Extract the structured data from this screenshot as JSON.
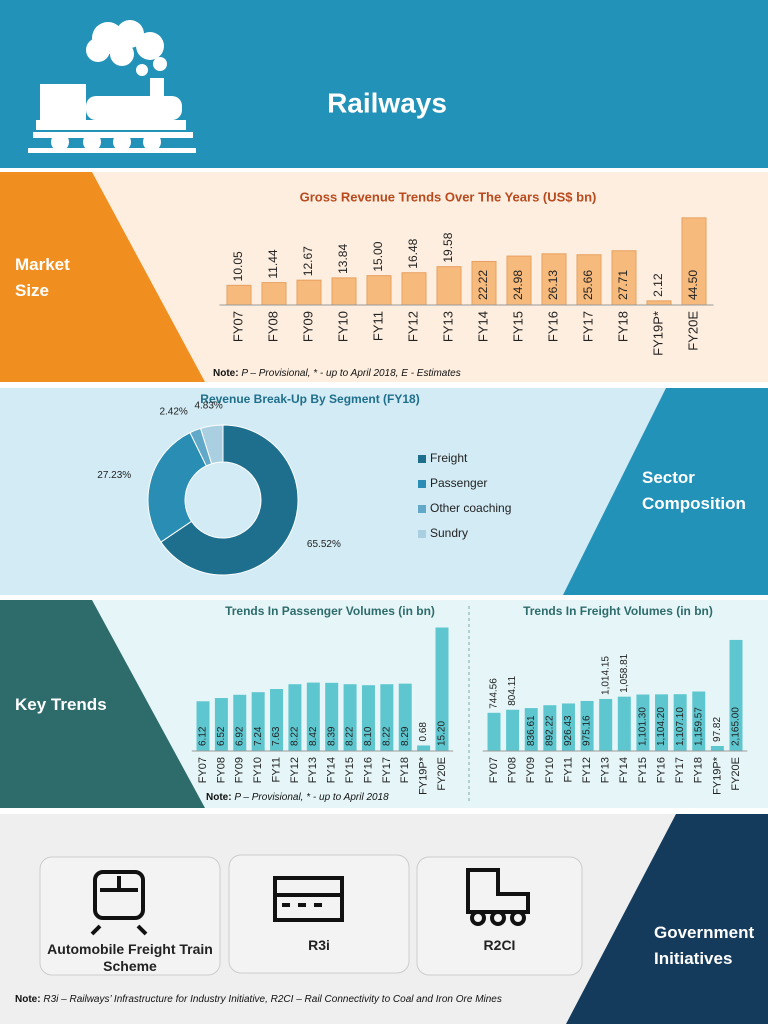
{
  "header": {
    "title": "Railways"
  },
  "market_size": {
    "label": "Market Size",
    "note": {
      "label": "Note:",
      "text": "P – Provisional, * - up to April 2018, E - Estimates"
    }
  },
  "sector_composition": {
    "label": "Sector Composition"
  },
  "key_trends": {
    "label": "Key Trends",
    "note": {
      "label": "Note:",
      "text": "P – Provisional, * - up to April 2018"
    }
  },
  "government_initiatives": {
    "label": "Government Initiatives",
    "cards": [
      "Automobile Freight Train Scheme",
      "R3i",
      "R2CI"
    ],
    "note": {
      "label": "Note:",
      "text": "R3i – Railways’ Infrastructure for Industry Initiative, R2CI – Rail Connectivity to Coal and Iron Ore Mines"
    }
  },
  "chart_data": [
    {
      "type": "bar",
      "title": "Gross Revenue Trends Over The Years (US$ bn)",
      "categories": [
        "FY07",
        "FY08",
        "FY09",
        "FY10",
        "FY11",
        "FY12",
        "FY13",
        "FY14",
        "FY15",
        "FY16",
        "FY17",
        "FY18",
        "FY19P*",
        "FY20E"
      ],
      "values": [
        10.05,
        11.44,
        12.67,
        13.84,
        15.0,
        16.48,
        19.58,
        22.22,
        24.98,
        26.13,
        25.66,
        27.71,
        2.12,
        44.5
      ],
      "value_labels": [
        "10.05",
        "11.44",
        "12.67",
        "13.84",
        "15.00",
        "16.48",
        "19.58",
        "22.22",
        "24.98",
        "26.13",
        "25.66",
        "27.71",
        "2.12",
        "44.50"
      ],
      "color": "#f6ba7c",
      "ylim": [
        0,
        48
      ]
    },
    {
      "type": "pie",
      "title": "Revenue Break-Up By Segment (FY18)",
      "categories": [
        "Freight",
        "Passenger",
        "Other coaching",
        "Sundry"
      ],
      "values": [
        65.52,
        27.23,
        2.42,
        4.83
      ],
      "value_labels": [
        "65.52%",
        "27.23%",
        "2.42%",
        "4.83%"
      ],
      "colors": [
        "#1e6f8e",
        "#2a8db3",
        "#62a9c9",
        "#aacfe1"
      ]
    },
    {
      "type": "bar",
      "title": "Trends In Passenger Volumes (in bn)",
      "categories": [
        "FY07",
        "FY08",
        "FY09",
        "FY10",
        "FY11",
        "FY12",
        "FY13",
        "FY14",
        "FY15",
        "FY16",
        "FY17",
        "FY18",
        "FY19P*",
        "FY20E"
      ],
      "values": [
        6.12,
        6.52,
        6.92,
        7.24,
        7.63,
        8.22,
        8.42,
        8.39,
        8.22,
        8.1,
        8.22,
        8.29,
        0.68,
        15.2
      ],
      "value_labels": [
        "6.12",
        "6.52",
        "6.92",
        "7.24",
        "7.63",
        "8.22",
        "8.42",
        "8.39",
        "8.22",
        "8.10",
        "8.22",
        "8.29",
        "0.68",
        "15.20"
      ],
      "color": "#5ec6cf",
      "ylim": [
        0,
        16
      ]
    },
    {
      "type": "bar",
      "title": "Trends In Freight Volumes (in bn)",
      "categories": [
        "FY07",
        "FY08",
        "FY09",
        "FY10",
        "FY11",
        "FY12",
        "FY13",
        "FY14",
        "FY15",
        "FY16",
        "FY17",
        "FY18",
        "FY19P*",
        "FY20E"
      ],
      "values": [
        744.56,
        804.11,
        836.61,
        892.22,
        926.43,
        975.16,
        1014.15,
        1058.81,
        1101.3,
        1104.2,
        1107.1,
        1159.57,
        97.82,
        2165.0
      ],
      "value_labels": [
        "744.56",
        "804.11",
        "836.61",
        "892.22",
        "926.43",
        "975.16",
        "1,014.15",
        "1,058.81",
        "1,101.30",
        "1,104.20",
        "1,107.10",
        "1,159.57",
        "97.82",
        "2,165.00"
      ],
      "color": "#5ec6cf",
      "ylim": [
        0,
        2300
      ]
    }
  ]
}
